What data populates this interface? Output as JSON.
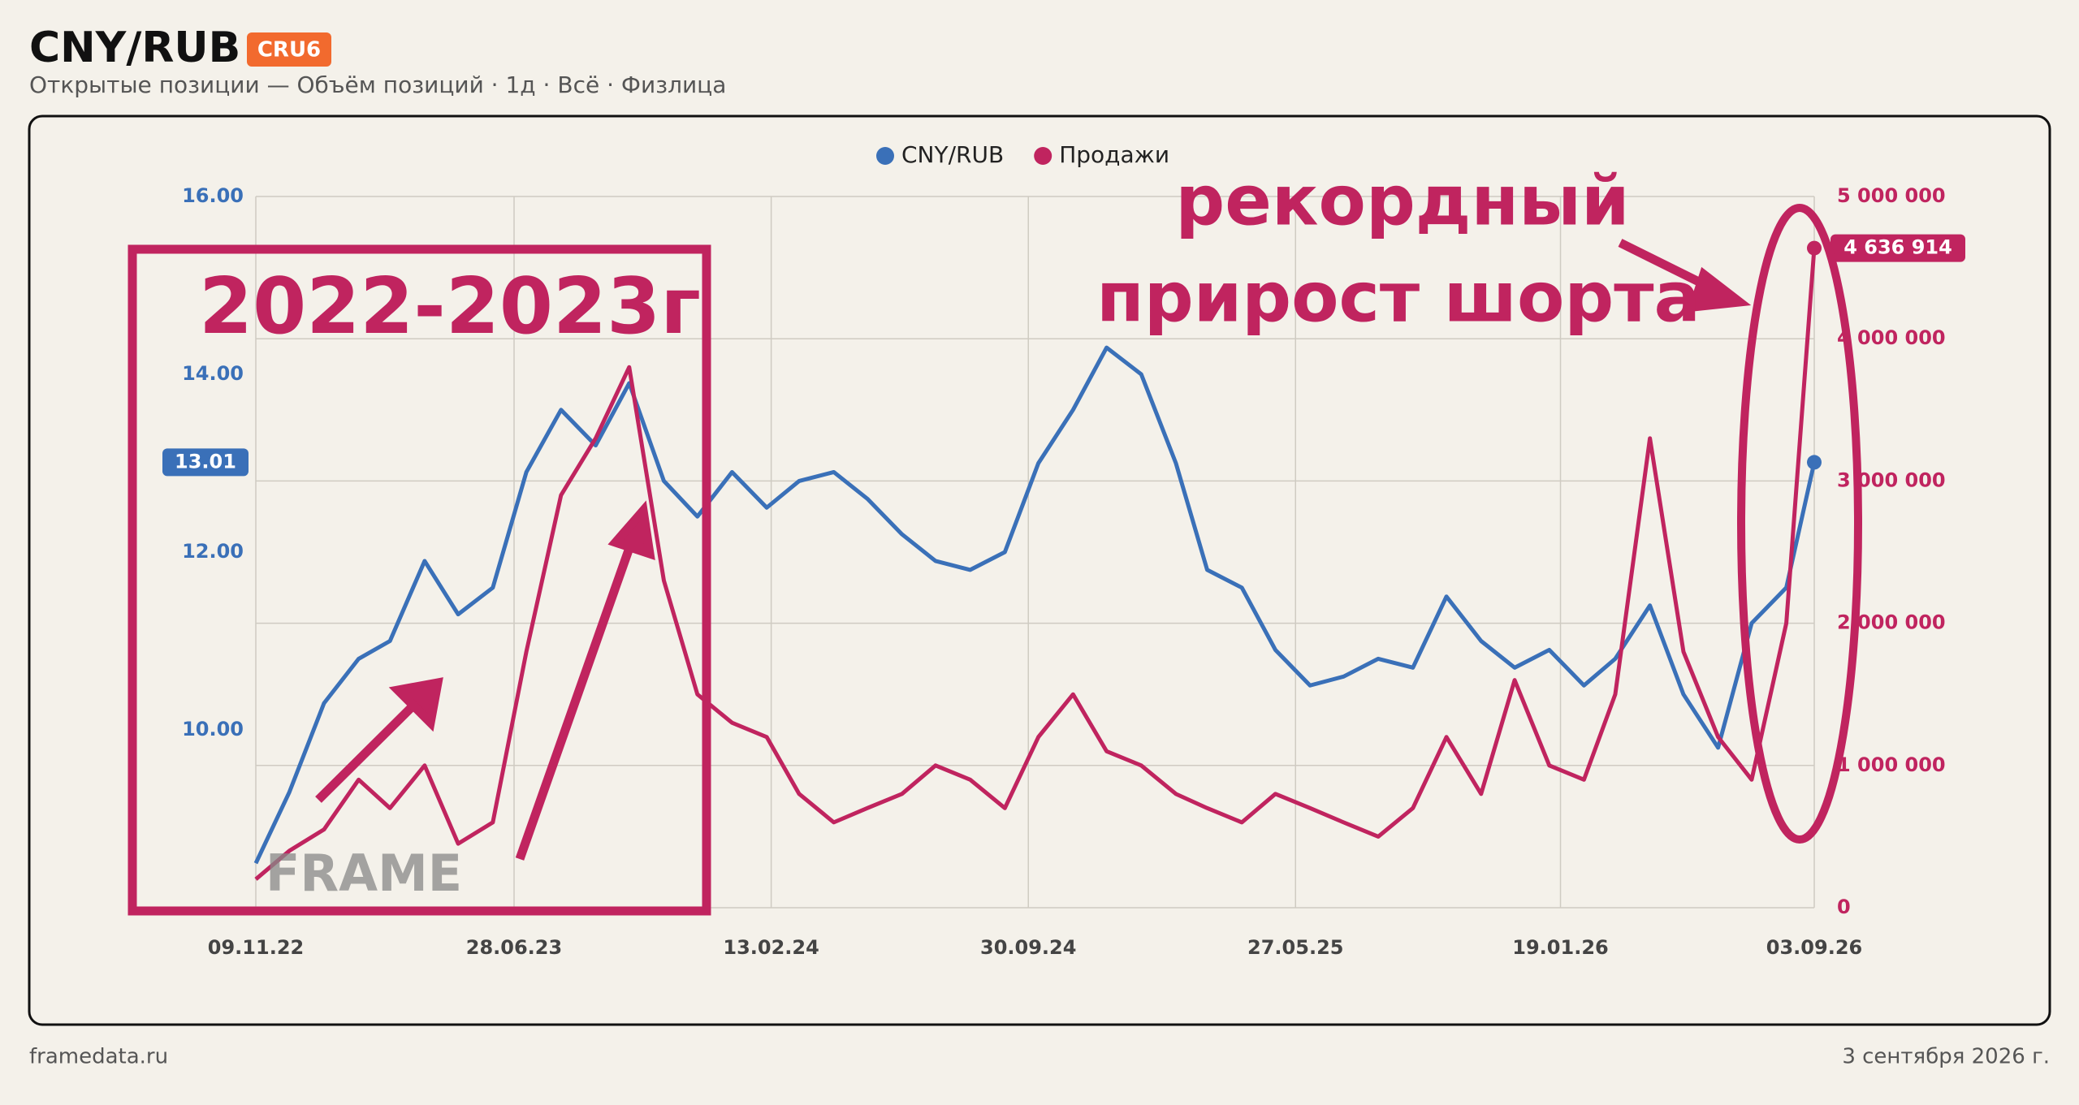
{
  "header": {
    "title": "CNY/RUB",
    "badge": "CRU6",
    "subtitle": "Открытые позиции — Объём позиций · 1д · Всё · Физлица"
  },
  "footer": {
    "source": "framedata.ru",
    "date": "3 сентября 2026 г."
  },
  "watermark": "FRAME",
  "chart_data": {
    "type": "line",
    "annotations": [
      "2022-2023г",
      "рекордный",
      "прирост шорта"
    ],
    "x": [
      "09.11.22",
      "09.12.22",
      "09.01.23",
      "09.02.23",
      "09.03.23",
      "09.04.23",
      "09.05.23",
      "09.06.23",
      "09.07.23",
      "09.08.23",
      "09.09.23",
      "09.10.23",
      "09.11.23",
      "09.12.23",
      "09.01.24",
      "09.02.24",
      "09.03.24",
      "09.04.24",
      "09.05.24",
      "09.06.24",
      "09.07.24",
      "09.08.24",
      "09.09.24",
      "09.10.24",
      "09.11.24",
      "09.12.24",
      "09.01.25",
      "09.02.25",
      "09.03.25",
      "09.04.25",
      "09.05.25",
      "09.06.25",
      "09.07.25",
      "09.08.25",
      "09.09.25",
      "09.10.25",
      "09.11.25",
      "09.12.25",
      "09.01.26",
      "09.02.26",
      "09.03.26",
      "09.04.26",
      "09.05.26",
      "09.06.26",
      "09.07.26",
      "09.08.26",
      "03.09.26"
    ],
    "xlim": [
      "09.11.22",
      "03.09.26"
    ],
    "xticks": [
      "09.11.22",
      "28.06.23",
      "13.02.24",
      "30.09.24",
      "27.05.25",
      "19.01.26",
      "03.09.26"
    ],
    "ylim": [
      8,
      16
    ],
    "yticks": [
      {
        "value": 10,
        "label": "10.00"
      },
      {
        "value": 12,
        "label": "12.00"
      },
      {
        "value": 14,
        "label": "14.00"
      },
      {
        "value": 16,
        "label": "16.00"
      }
    ],
    "y2lim": [
      0,
      5000000
    ],
    "y2ticks": [
      0,
      {
        "value": 1000000,
        "label": "1 000 000"
      },
      {
        "value": 2000000,
        "label": "2 000 000"
      },
      {
        "value": 3000000,
        "label": "3 000 000"
      },
      {
        "value": 4000000,
        "label": "4 000 000"
      },
      {
        "value": 5000000,
        "label": "5 000 000"
      }
    ],
    "grid": true,
    "legend": "top",
    "series": [
      {
        "name": "CNY/RUB",
        "color": "#3a70b8",
        "axis": "y",
        "values": [
          8.5,
          9.3,
          10.3,
          10.8,
          11.0,
          11.9,
          11.3,
          11.6,
          12.9,
          13.6,
          13.2,
          13.9,
          12.8,
          12.4,
          12.9,
          12.5,
          12.8,
          12.9,
          12.6,
          12.2,
          11.9,
          11.8,
          12.0,
          13.0,
          13.6,
          14.3,
          14.0,
          13.0,
          11.8,
          11.6,
          10.9,
          10.5,
          10.6,
          10.8,
          10.7,
          11.5,
          11.0,
          10.7,
          10.9,
          10.5,
          10.8,
          11.4,
          10.4,
          9.8,
          11.2,
          11.6,
          13.01
        ],
        "value_labels": [
          null,
          null,
          null,
          null,
          null,
          null,
          null,
          null,
          null,
          null,
          null,
          null,
          null,
          null,
          null,
          null,
          null,
          null,
          null,
          null,
          null,
          null,
          null,
          null,
          null,
          null,
          null,
          null,
          null,
          null,
          null,
          null,
          null,
          null,
          null,
          null,
          null,
          null,
          null,
          null,
          null,
          null,
          null,
          null,
          null,
          null,
          "13.01"
        ]
      },
      {
        "name": "Продажи",
        "color": "#c0245f",
        "axis": "y2",
        "values": [
          200000,
          400000,
          550000,
          900000,
          700000,
          1000000,
          450000,
          600000,
          1800000,
          2900000,
          3300000,
          3800000,
          2300000,
          1500000,
          1300000,
          1200000,
          800000,
          600000,
          700000,
          800000,
          1000000,
          900000,
          700000,
          1200000,
          1500000,
          1100000,
          1000000,
          800000,
          700000,
          600000,
          800000,
          700000,
          600000,
          500000,
          700000,
          1200000,
          800000,
          1600000,
          1000000,
          900000,
          1500000,
          3300000,
          1800000,
          1200000,
          900000,
          2000000,
          4636914
        ],
        "value_labels": [
          null,
          null,
          null,
          null,
          null,
          null,
          null,
          null,
          null,
          null,
          null,
          null,
          null,
          null,
          null,
          null,
          null,
          null,
          null,
          null,
          null,
          null,
          null,
          null,
          null,
          null,
          null,
          null,
          null,
          null,
          null,
          null,
          null,
          null,
          null,
          null,
          null,
          null,
          null,
          null,
          null,
          null,
          null,
          null,
          null,
          null,
          "4 636 914"
        ]
      }
    ]
  }
}
